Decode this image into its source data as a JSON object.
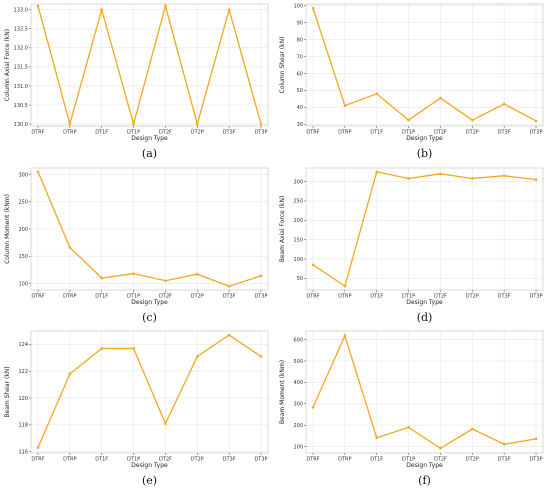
{
  "chart_data": [
    {
      "type": "line",
      "panel_label": "(a)",
      "categories": [
        "DTRF",
        "DTRP",
        "DT1F",
        "DT1P",
        "DT2F",
        "DT2P",
        "DT3F",
        "DT3P"
      ],
      "values": [
        133.1,
        130.0,
        133.0,
        130.0,
        133.1,
        130.0,
        133.0,
        130.0
      ],
      "xlabel": "Design Type",
      "ylabel": "Column Axial Force (kN)",
      "ylim": [
        129.95,
        133.15
      ],
      "yticks": [
        "130.0",
        "130.5",
        "131.0",
        "131.5",
        "132.0",
        "132.5",
        "133.0"
      ],
      "grid": true,
      "color": "#f2a81d"
    },
    {
      "type": "line",
      "panel_label": "(b)",
      "categories": [
        "DTRF",
        "DTRP",
        "DT1F",
        "DT1P",
        "DT2F",
        "DT2P",
        "DT3F",
        "DT3P"
      ],
      "values": [
        98.5,
        41,
        48,
        32.5,
        45.5,
        32.5,
        42,
        32
      ],
      "xlabel": "Design Type",
      "ylabel": "Column Shear (kN)",
      "ylim": [
        29,
        101
      ],
      "yticks": [
        "30",
        "40",
        "50",
        "60",
        "70",
        "80",
        "90",
        "100"
      ],
      "grid": true,
      "color": "#f2a81d"
    },
    {
      "type": "line",
      "panel_label": "(c)",
      "categories": [
        "DTRF",
        "DTRP",
        "DT1F",
        "DT1P",
        "DT2F",
        "DT2P",
        "DT3F",
        "DT3P"
      ],
      "values": [
        305,
        166,
        110,
        118,
        105,
        117,
        95,
        114
      ],
      "xlabel": "Design Type",
      "ylabel": "Column Moment (kNm)",
      "ylim": [
        88,
        312
      ],
      "yticks": [
        "100",
        "150",
        "200",
        "250",
        "300"
      ],
      "grid": true,
      "color": "#f2a81d"
    },
    {
      "type": "line",
      "panel_label": "(d)",
      "categories": [
        "DTRF",
        "DTRP",
        "DT1F",
        "DT1P",
        "DT2F",
        "DT2P",
        "DT3F",
        "DT3P"
      ],
      "values": [
        85,
        30,
        325,
        308,
        320,
        308,
        315,
        305
      ],
      "xlabel": "Design Type",
      "ylabel": "Beam Axial Force (kN)",
      "ylim": [
        20,
        335
      ],
      "yticks": [
        "50",
        "100",
        "150",
        "200",
        "250",
        "300"
      ],
      "grid": true,
      "color": "#f2a81d"
    },
    {
      "type": "line",
      "panel_label": "(e)",
      "categories": [
        "DTRF",
        "DTRP",
        "DT1F",
        "DT1P",
        "DT2F",
        "DT2P",
        "DT3F",
        "DT3P"
      ],
      "values": [
        116.3,
        121.8,
        123.7,
        123.7,
        118.1,
        123.1,
        124.7,
        123.1
      ],
      "xlabel": "Design Type",
      "ylabel": "Beam Shear (kN)",
      "ylim": [
        115.9,
        125.0
      ],
      "yticks": [
        "116",
        "118",
        "120",
        "122",
        "124"
      ],
      "grid": true,
      "color": "#f2a81d"
    },
    {
      "type": "line",
      "panel_label": "(f)",
      "categories": [
        "DTRF",
        "DTRP",
        "DT1F",
        "DT1P",
        "DT2F",
        "DT2P",
        "DT3F",
        "DT3P"
      ],
      "values": [
        283,
        618,
        141,
        190,
        92,
        182,
        111,
        136
      ],
      "xlabel": "Design Type",
      "ylabel": "Beam Moment (kNm)",
      "ylim": [
        70,
        640
      ],
      "yticks": [
        "100",
        "200",
        "300",
        "400",
        "500",
        "600"
      ],
      "grid": true,
      "color": "#f2a81d"
    }
  ]
}
